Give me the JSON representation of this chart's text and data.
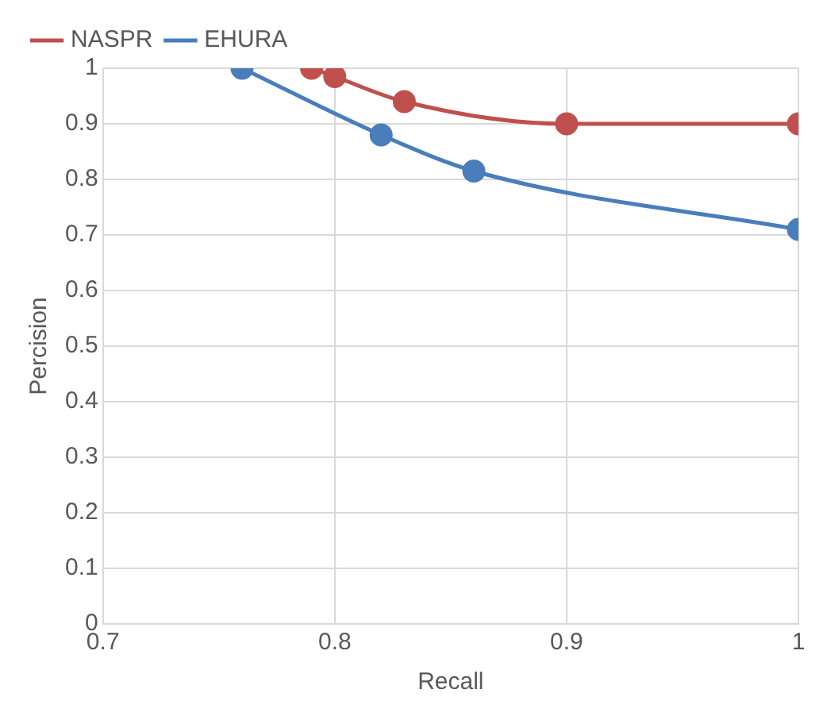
{
  "chart_data": {
    "type": "line",
    "xlabel": "Recall",
    "ylabel": "Percision",
    "xlim": [
      0.7,
      1
    ],
    "xticks": [
      0.7,
      0.8,
      0.9,
      1
    ],
    "ylim": [
      0,
      1
    ],
    "yticks": [
      0,
      0.1,
      0.2,
      0.3,
      0.4,
      0.5,
      0.6,
      0.7,
      0.8,
      0.9,
      1
    ],
    "grid": true,
    "legend": "top left",
    "marker": "circle",
    "line_style": "solid",
    "series": [
      {
        "name": "NASPR",
        "color": "#c0504d",
        "x": [
          0.79,
          0.8,
          0.83,
          0.9,
          1
        ],
        "values": [
          1,
          0.985,
          0.94,
          0.9,
          0.9
        ]
      },
      {
        "name": "EHURA",
        "color": "#4a7ebb",
        "x": [
          0.76,
          0.82,
          0.86,
          1
        ],
        "values": [
          1,
          0.88,
          0.815,
          0.71
        ]
      }
    ]
  }
}
